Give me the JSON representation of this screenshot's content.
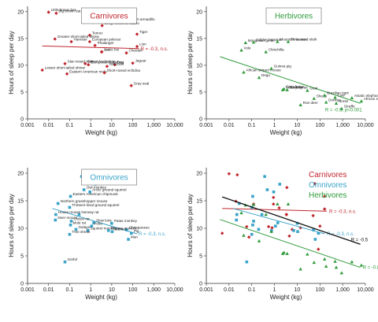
{
  "colors": {
    "carnivore": "#c0262d",
    "herbivore": "#2e9a3a",
    "omnivore": "#3aa3c9",
    "overall": "#111111"
  },
  "axes": {
    "xlabel": "Weight (kg)",
    "ylabel": "Hours of sleep per day",
    "xticks": [
      "0.001",
      "0.01",
      "0.1",
      "1",
      "10",
      "100",
      "1,000",
      "10,000"
    ],
    "yticks": [
      "0",
      "5",
      "10",
      "15",
      "20"
    ]
  },
  "chart_data": [
    {
      "type": "scatter",
      "title": "Carnivores",
      "xscale": "log",
      "xlim": [
        0.001,
        10000
      ],
      "ylim": [
        0,
        21
      ],
      "fit": {
        "label": "R = -0.3, n.s.",
        "x": [
          0.005,
          200
        ],
        "y": [
          13.6,
          13.1
        ]
      },
      "points": [
        {
          "label": "Little brown bat",
          "x": 0.01,
          "y": 19.9
        },
        {
          "label": "Big brown bat",
          "x": 0.023,
          "y": 19.7
        },
        {
          "label": "Giant armadillo",
          "x": 60,
          "y": 18.1
        },
        {
          "label": "Long-nosed armadillo",
          "x": 3.5,
          "y": 17.4
        },
        {
          "label": "Tiger",
          "x": 160,
          "y": 15.8
        },
        {
          "label": "Tenrec",
          "x": 0.9,
          "y": 15.6
        },
        {
          "label": "Greater short-tailed shrew",
          "x": 0.02,
          "y": 14.9
        },
        {
          "label": "European polecat",
          "x": 0.9,
          "y": 14.4
        },
        {
          "label": "Lion",
          "x": 160,
          "y": 13.5
        },
        {
          "label": "Phalanger",
          "x": 1.6,
          "y": 13.7
        },
        {
          "label": "Hamster",
          "x": 0.12,
          "y": 14.4
        },
        {
          "label": "Cat",
          "x": 3.3,
          "y": 12.5
        },
        {
          "label": "Arctic fox",
          "x": 3.4,
          "y": 12.5
        },
        {
          "label": "Desert hedgehog",
          "x": 0.55,
          "y": 10.3
        },
        {
          "label": "European hedgehog",
          "x": 0.78,
          "y": 10.1
        },
        {
          "label": "Cheetah",
          "x": 50,
          "y": 12.3
        },
        {
          "label": "Dog",
          "x": 14,
          "y": 10.1
        },
        {
          "label": "Raccoon",
          "x": 6,
          "y": 9.8
        },
        {
          "label": "Jaguar",
          "x": 100,
          "y": 10.4
        },
        {
          "label": "Star-nosed mole",
          "x": 0.06,
          "y": 10.3
        },
        {
          "label": "Lesser short-tailed shrew",
          "x": 0.005,
          "y": 9.1
        },
        {
          "label": "Eastern American mole",
          "x": 0.075,
          "y": 8.4
        },
        {
          "label": "Short-nosed echidna",
          "x": 4.5,
          "y": 8.6
        },
        {
          "label": "Gray seal",
          "x": 85,
          "y": 6.2
        }
      ]
    },
    {
      "type": "scatter",
      "title": "Herbivores",
      "xscale": "log",
      "xlim": [
        0.001,
        10000
      ],
      "ylim": [
        0,
        21
      ],
      "fit": {
        "label": "R = -0.8, p<0.001",
        "x": [
          0.004,
          6000
        ],
        "y": [
          11.6,
          2.9
        ]
      },
      "points": [
        {
          "label": "Mongolian gerbil",
          "x": 0.053,
          "y": 14.2
        },
        {
          "label": "Golden hamster",
          "x": 0.12,
          "y": 14.3
        },
        {
          "label": "Mountain beaver",
          "x": 1.35,
          "y": 14.4
        },
        {
          "label": "Three-toed sloth",
          "x": 4,
          "y": 14.4
        },
        {
          "label": "Chinchilla",
          "x": 0.42,
          "y": 12.5
        },
        {
          "label": "Vole",
          "x": 0.035,
          "y": 12.8
        },
        {
          "label": "African striped mouse",
          "x": 0.044,
          "y": 8.7
        },
        {
          "label": "Degu",
          "x": 0.21,
          "y": 7.7
        },
        {
          "label": "Guinea pig",
          "x": 0.73,
          "y": 9.4
        },
        {
          "label": "Gray hyrax",
          "x": 2.6,
          "y": 5.6
        },
        {
          "label": "Tree hyrax",
          "x": 2.3,
          "y": 5.4
        },
        {
          "label": "Rock hyrax",
          "x": 3.6,
          "y": 5.4
        },
        {
          "label": "Sheep",
          "x": 55,
          "y": 3.8
        },
        {
          "label": "Roe deer",
          "x": 14,
          "y": 2.6
        },
        {
          "label": "Cow",
          "x": 465,
          "y": 4.0
        },
        {
          "label": "Goat",
          "x": 28,
          "y": 5.3
        },
        {
          "label": "Horse",
          "x": 521,
          "y": 2.9
        },
        {
          "label": "Donkey",
          "x": 187,
          "y": 3.1
        },
        {
          "label": "Giraffe",
          "x": 900,
          "y": 1.9
        },
        {
          "label": "Asiatic elephant",
          "x": 2547,
          "y": 3.9
        },
        {
          "label": "African elephant",
          "x": 6654,
          "y": 3.3
        },
        {
          "label": "Brazilian tapir",
          "x": 160,
          "y": 4.4
        }
      ]
    },
    {
      "type": "scatter",
      "title": "Omnivores",
      "xscale": "log",
      "xlim": [
        0.001,
        10000
      ],
      "ylim": [
        0,
        21
      ],
      "fit": {
        "label": "R = -0.3, n.s.",
        "x": [
          0.015,
          160
        ],
        "y": [
          13.6,
          9.0
        ]
      },
      "points": [
        {
          "label": "Thick-tailed opossum",
          "x": 0.37,
          "y": 19.4
        },
        {
          "label": "Virginia opossum",
          "x": 1.7,
          "y": 18.0
        },
        {
          "label": "Owl monkey",
          "x": 0.48,
          "y": 17.0
        },
        {
          "label": "Arctic ground squirrel",
          "x": 0.92,
          "y": 16.6
        },
        {
          "label": "Eastern American chipmunk",
          "x": 0.11,
          "y": 15.8
        },
        {
          "label": "Northern grasshopper mouse",
          "x": 0.028,
          "y": 14.5
        },
        {
          "label": "Thirteen-lined ground squirrel",
          "x": 0.1,
          "y": 13.8
        },
        {
          "label": "Norway rat",
          "x": 0.28,
          "y": 12.5
        },
        {
          "label": "House mouse",
          "x": 0.022,
          "y": 12.5
        },
        {
          "label": "Deer mouse",
          "x": 0.021,
          "y": 11.5
        },
        {
          "label": "Cotton rat",
          "x": 0.12,
          "y": 11.3
        },
        {
          "label": "Mole rat",
          "x": 0.11,
          "y": 10.6
        },
        {
          "label": "Slow loris",
          "x": 1.4,
          "y": 11.0
        },
        {
          "label": "Potto",
          "x": 1.1,
          "y": 10.4
        },
        {
          "label": "Galago",
          "x": 0.2,
          "y": 9.8
        },
        {
          "label": "Squirrel monkey",
          "x": 0.74,
          "y": 9.6
        },
        {
          "label": "Tree shrew",
          "x": 0.1,
          "y": 8.9
        },
        {
          "label": "Patas monkey",
          "x": 10,
          "y": 10.9
        },
        {
          "label": "Rhesus monkey",
          "x": 7,
          "y": 9.6
        },
        {
          "label": "Chimpanzee",
          "x": 52,
          "y": 9.7
        },
        {
          "label": "Baboon",
          "x": 10.5,
          "y": 9.4
        },
        {
          "label": "Pig",
          "x": 86,
          "y": 9.1
        },
        {
          "label": "Man",
          "x": 62,
          "y": 8.0
        },
        {
          "label": "Gerbil",
          "x": 0.06,
          "y": 3.9
        }
      ]
    },
    {
      "type": "scatter",
      "xscale": "log",
      "xlim": [
        0.001,
        10000
      ],
      "ylim": [
        0,
        21
      ],
      "legend": {
        "placement": "top-right"
      },
      "series": [
        {
          "name": "Carnivores",
          "color_key": "carnivore",
          "fit_label": "R = -0.3, n.s.",
          "fit_x": [
            0.005,
            200
          ],
          "fit_y": [
            13.6,
            13.1
          ]
        },
        {
          "name": "Omnivores",
          "color_key": "omnivore",
          "fit_label": "R = -0.3, n.s.",
          "fit_x": [
            0.015,
            160
          ],
          "fit_y": [
            13.6,
            9.0
          ]
        },
        {
          "name": "Herbivores",
          "color_key": "herbivore",
          "fit_label": "R = -0.8, p<0.001",
          "fit_x": [
            0.004,
            6000
          ],
          "fit_y": [
            11.6,
            2.9
          ]
        }
      ],
      "overall_fit": {
        "label": "R = -0.5",
        "x": [
          0.005,
          6000
        ],
        "y": [
          15.7,
          7.1
        ]
      }
    }
  ]
}
